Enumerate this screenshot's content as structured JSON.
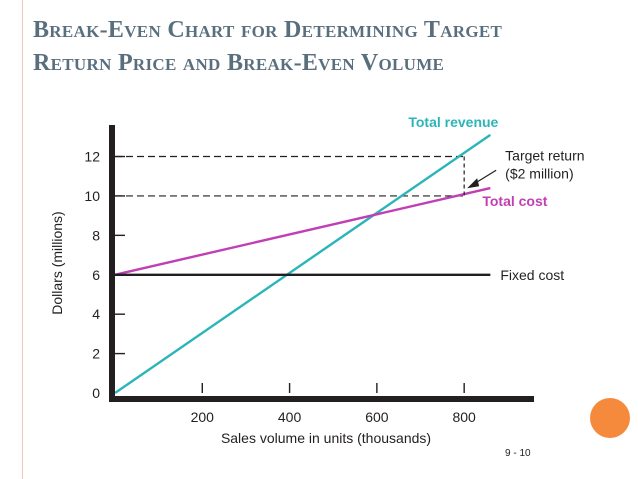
{
  "slide": {
    "title_line1": "Break-Even Chart for Determining Target",
    "title_line2": "Return Price and Break-Even Volume",
    "page_number": "9 - 10",
    "accent_color": "#f58a3c"
  },
  "chart_data": {
    "type": "line",
    "ylabel": "Dollars (millions)",
    "xlabel": "Sales volume in units (thousands)",
    "xlim": [
      0,
      960
    ],
    "ylim": [
      0,
      13.6
    ],
    "x_ticks": [
      200,
      400,
      600,
      800
    ],
    "y_ticks": [
      0,
      2,
      4,
      6,
      8,
      10,
      12
    ],
    "series": [
      {
        "name": "Total revenue",
        "color": "#2cb5b9",
        "label": "Total revenue",
        "x": [
          0,
          860
        ],
        "values": [
          0,
          13.1
        ]
      },
      {
        "name": "Total cost",
        "color": "#c13fb4",
        "label": "Total cost",
        "x": [
          0,
          860
        ],
        "values": [
          6,
          10.4
        ]
      },
      {
        "name": "Fixed cost",
        "color": "#231f20",
        "label": "Fixed cost",
        "x": [
          0,
          860
        ],
        "values": [
          6,
          6
        ]
      }
    ],
    "reference_lines": [
      {
        "y": 12,
        "x_end": 800
      },
      {
        "y": 10,
        "x_end": 800
      }
    ],
    "annotation": {
      "line1": "Target return",
      "line2": "($2 million)",
      "x": 800,
      "y_from": 10,
      "y_to": 12
    }
  }
}
